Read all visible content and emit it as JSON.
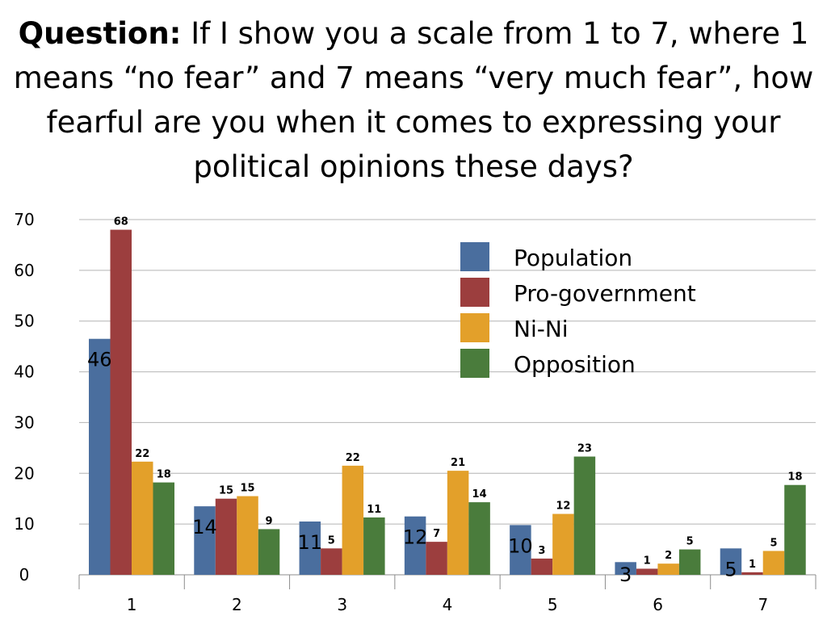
{
  "question": {
    "label": "Question:",
    "text": " If I show you a scale from 1 to 7, where 1 means “no fear” and 7 means “very much fear”, how fearful are you when it comes to expressing your political opinions these days?"
  },
  "chart_data": {
    "type": "bar",
    "categories": [
      "1",
      "2",
      "3",
      "4",
      "5",
      "6",
      "7"
    ],
    "ylim": [
      0,
      70
    ],
    "yticks": [
      0,
      10,
      20,
      30,
      40,
      50,
      60,
      70
    ],
    "grid": true,
    "legend_position": "top-right",
    "series": [
      {
        "name": "Population",
        "color": "#4a6e9e",
        "values": [
          46,
          14,
          11,
          12,
          10,
          3,
          5
        ],
        "bar_values": [
          46.5,
          13.5,
          10.5,
          11.5,
          9.8,
          2.5,
          5.2
        ],
        "label_style": "big"
      },
      {
        "name": "Pro-government",
        "color": "#9c3e3e",
        "values": [
          68,
          15,
          5,
          7,
          3,
          1,
          1
        ],
        "bar_values": [
          68,
          15,
          5.2,
          6.5,
          3.2,
          1.2,
          0.5
        ],
        "label_style": "small"
      },
      {
        "name": "Ni-Ni",
        "color": "#e3a02a",
        "values": [
          22,
          15,
          22,
          21,
          12,
          2,
          5
        ],
        "bar_values": [
          22.3,
          15.5,
          21.5,
          20.5,
          12,
          2.2,
          4.7
        ],
        "label_style": "small"
      },
      {
        "name": "Opposition",
        "color": "#4a7c3c",
        "values": [
          18,
          9,
          11,
          14,
          23,
          5,
          18
        ],
        "bar_values": [
          18.2,
          9,
          11.3,
          14.3,
          23.3,
          5,
          17.7
        ],
        "label_style": "small"
      }
    ]
  }
}
